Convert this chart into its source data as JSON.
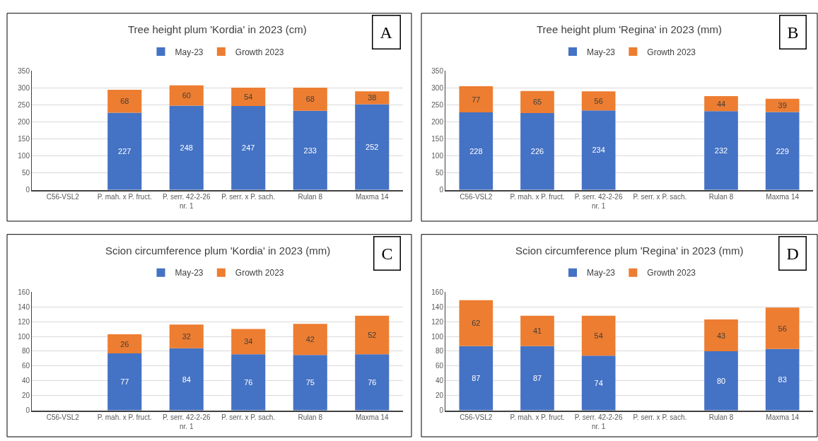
{
  "chart_data": [
    {
      "type": "bar",
      "title": "Tree height plum 'Kordia' in 2023 (cm)",
      "annotations": [
        "A"
      ],
      "stacked": true,
      "data_labels": true,
      "grid": "y",
      "legend": "top",
      "categories": [
        "C56-VSL2",
        "P. mah. x P. fruct.",
        "P. serr. 42-2-26 nr. 1",
        "P. serr. x P. sach.",
        "Rulan 8",
        "Maxma 14"
      ],
      "ylim": [
        0,
        350
      ],
      "yticks": [
        0,
        50,
        100,
        150,
        200,
        250,
        300,
        350
      ],
      "series": [
        {
          "name": "May-23",
          "color": "#4472c4",
          "values": [
            null,
            227,
            248,
            247,
            233,
            252
          ]
        },
        {
          "name": "Growth 2023",
          "color": "#ed7d31",
          "values": [
            null,
            68,
            60,
            54,
            68,
            38
          ]
        }
      ]
    },
    {
      "type": "bar",
      "title": "Tree height plum 'Regina' in 2023 (mm)",
      "annotations": [
        "B"
      ],
      "stacked": true,
      "data_labels": true,
      "grid": "y",
      "legend": "top",
      "categories": [
        "C56-VSL2",
        "P. mah. x P. fruct.",
        "P. serr. 42-2-26 nr. 1",
        "P. serr. x P. sach.",
        "Rulan 8",
        "Maxma 14"
      ],
      "ylim": [
        0,
        350
      ],
      "yticks": [
        0,
        50,
        100,
        150,
        200,
        250,
        300,
        350
      ],
      "series": [
        {
          "name": "May-23",
          "color": "#4472c4",
          "values": [
            228,
            226,
            234,
            null,
            232,
            229
          ]
        },
        {
          "name": "Growth 2023",
          "color": "#ed7d31",
          "values": [
            77,
            65,
            56,
            null,
            44,
            39
          ]
        }
      ]
    },
    {
      "type": "bar",
      "title": "Scion circumference plum 'Kordia' in 2023 (mm)",
      "annotations": [
        "C"
      ],
      "stacked": true,
      "data_labels": true,
      "grid": "y",
      "legend": "top",
      "categories": [
        "C56-VSL2",
        "P. mah. x P. fruct.",
        "P. serr. 42-2-26 nr. 1",
        "P. serr. x P. sach.",
        "Rulan 8",
        "Maxma 14"
      ],
      "ylim": [
        0,
        160
      ],
      "yticks": [
        0,
        20,
        40,
        60,
        80,
        100,
        120,
        140,
        160
      ],
      "series": [
        {
          "name": "May-23",
          "color": "#4472c4",
          "values": [
            null,
            77,
            84,
            76,
            75,
            76
          ]
        },
        {
          "name": "Growth 2023",
          "color": "#ed7d31",
          "values": [
            null,
            26,
            32,
            34,
            42,
            52
          ]
        }
      ]
    },
    {
      "type": "bar",
      "title": "Scion circumference plum 'Regina' in 2023 (mm)",
      "annotations": [
        "D"
      ],
      "stacked": true,
      "data_labels": true,
      "grid": "y",
      "legend": "top",
      "categories": [
        "C56-VSL2",
        "P. mah. x P. fruct.",
        "P. serr. 42-2-26 nr. 1",
        "P. serr. x P. sach.",
        "Rulan 8",
        "Maxma 14"
      ],
      "ylim": [
        0,
        160
      ],
      "yticks": [
        0,
        20,
        40,
        60,
        80,
        100,
        120,
        140,
        160
      ],
      "series": [
        {
          "name": "May-23",
          "color": "#4472c4",
          "values": [
            87,
            87,
            74,
            null,
            80,
            83
          ]
        },
        {
          "name": "Growth 2023",
          "color": "#ed7d31",
          "values": [
            62,
            41,
            54,
            null,
            43,
            56
          ]
        }
      ]
    }
  ]
}
